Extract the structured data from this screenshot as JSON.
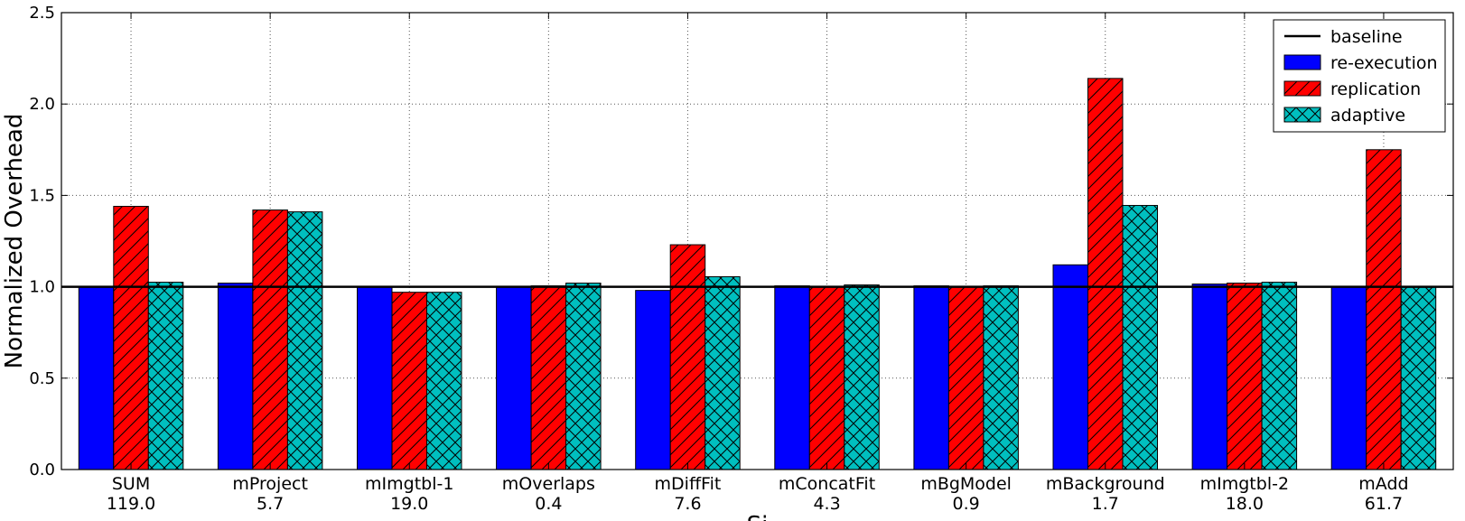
{
  "chart_data": {
    "type": "bar",
    "categories": [
      "SUM",
      "mProject",
      "mImgtbl-1",
      "mOverlaps",
      "mDiffFit",
      "mConcatFit",
      "mBgModel",
      "mBackground",
      "mImgtbl-2",
      "mAdd"
    ],
    "category_sublabels": [
      "119.0",
      "5.7",
      "19.0",
      "0.4",
      "7.6",
      "4.3",
      "0.9",
      "1.7",
      "18.0",
      "61.7"
    ],
    "series": [
      {
        "name": "re-execution",
        "color": "#0000ff",
        "hatch": "none",
        "values": [
          1.0,
          1.02,
          1.0,
          1.0,
          0.98,
          1.005,
          1.005,
          1.12,
          1.015,
          1.0
        ]
      },
      {
        "name": "replication",
        "color": "#ff0000",
        "hatch": "diagonal",
        "values": [
          1.44,
          1.42,
          0.97,
          1.005,
          1.23,
          1.0,
          1.0,
          2.14,
          1.02,
          1.75
        ]
      },
      {
        "name": "adaptive",
        "color": "#00bfbf",
        "hatch": "cross",
        "values": [
          1.025,
          1.41,
          0.97,
          1.02,
          1.055,
          1.01,
          1.005,
          1.445,
          1.025,
          1.0
        ]
      }
    ],
    "baseline": {
      "name": "baseline",
      "value": 1.0
    },
    "xlabel": "Si",
    "ylabel": "Normalized Overhead",
    "ylim": [
      0,
      2.5
    ],
    "yticks": [
      "0.0",
      "0.5",
      "1.0",
      "1.5",
      "2.0",
      "2.5"
    ],
    "grid": true,
    "legend_position": "top-right"
  }
}
